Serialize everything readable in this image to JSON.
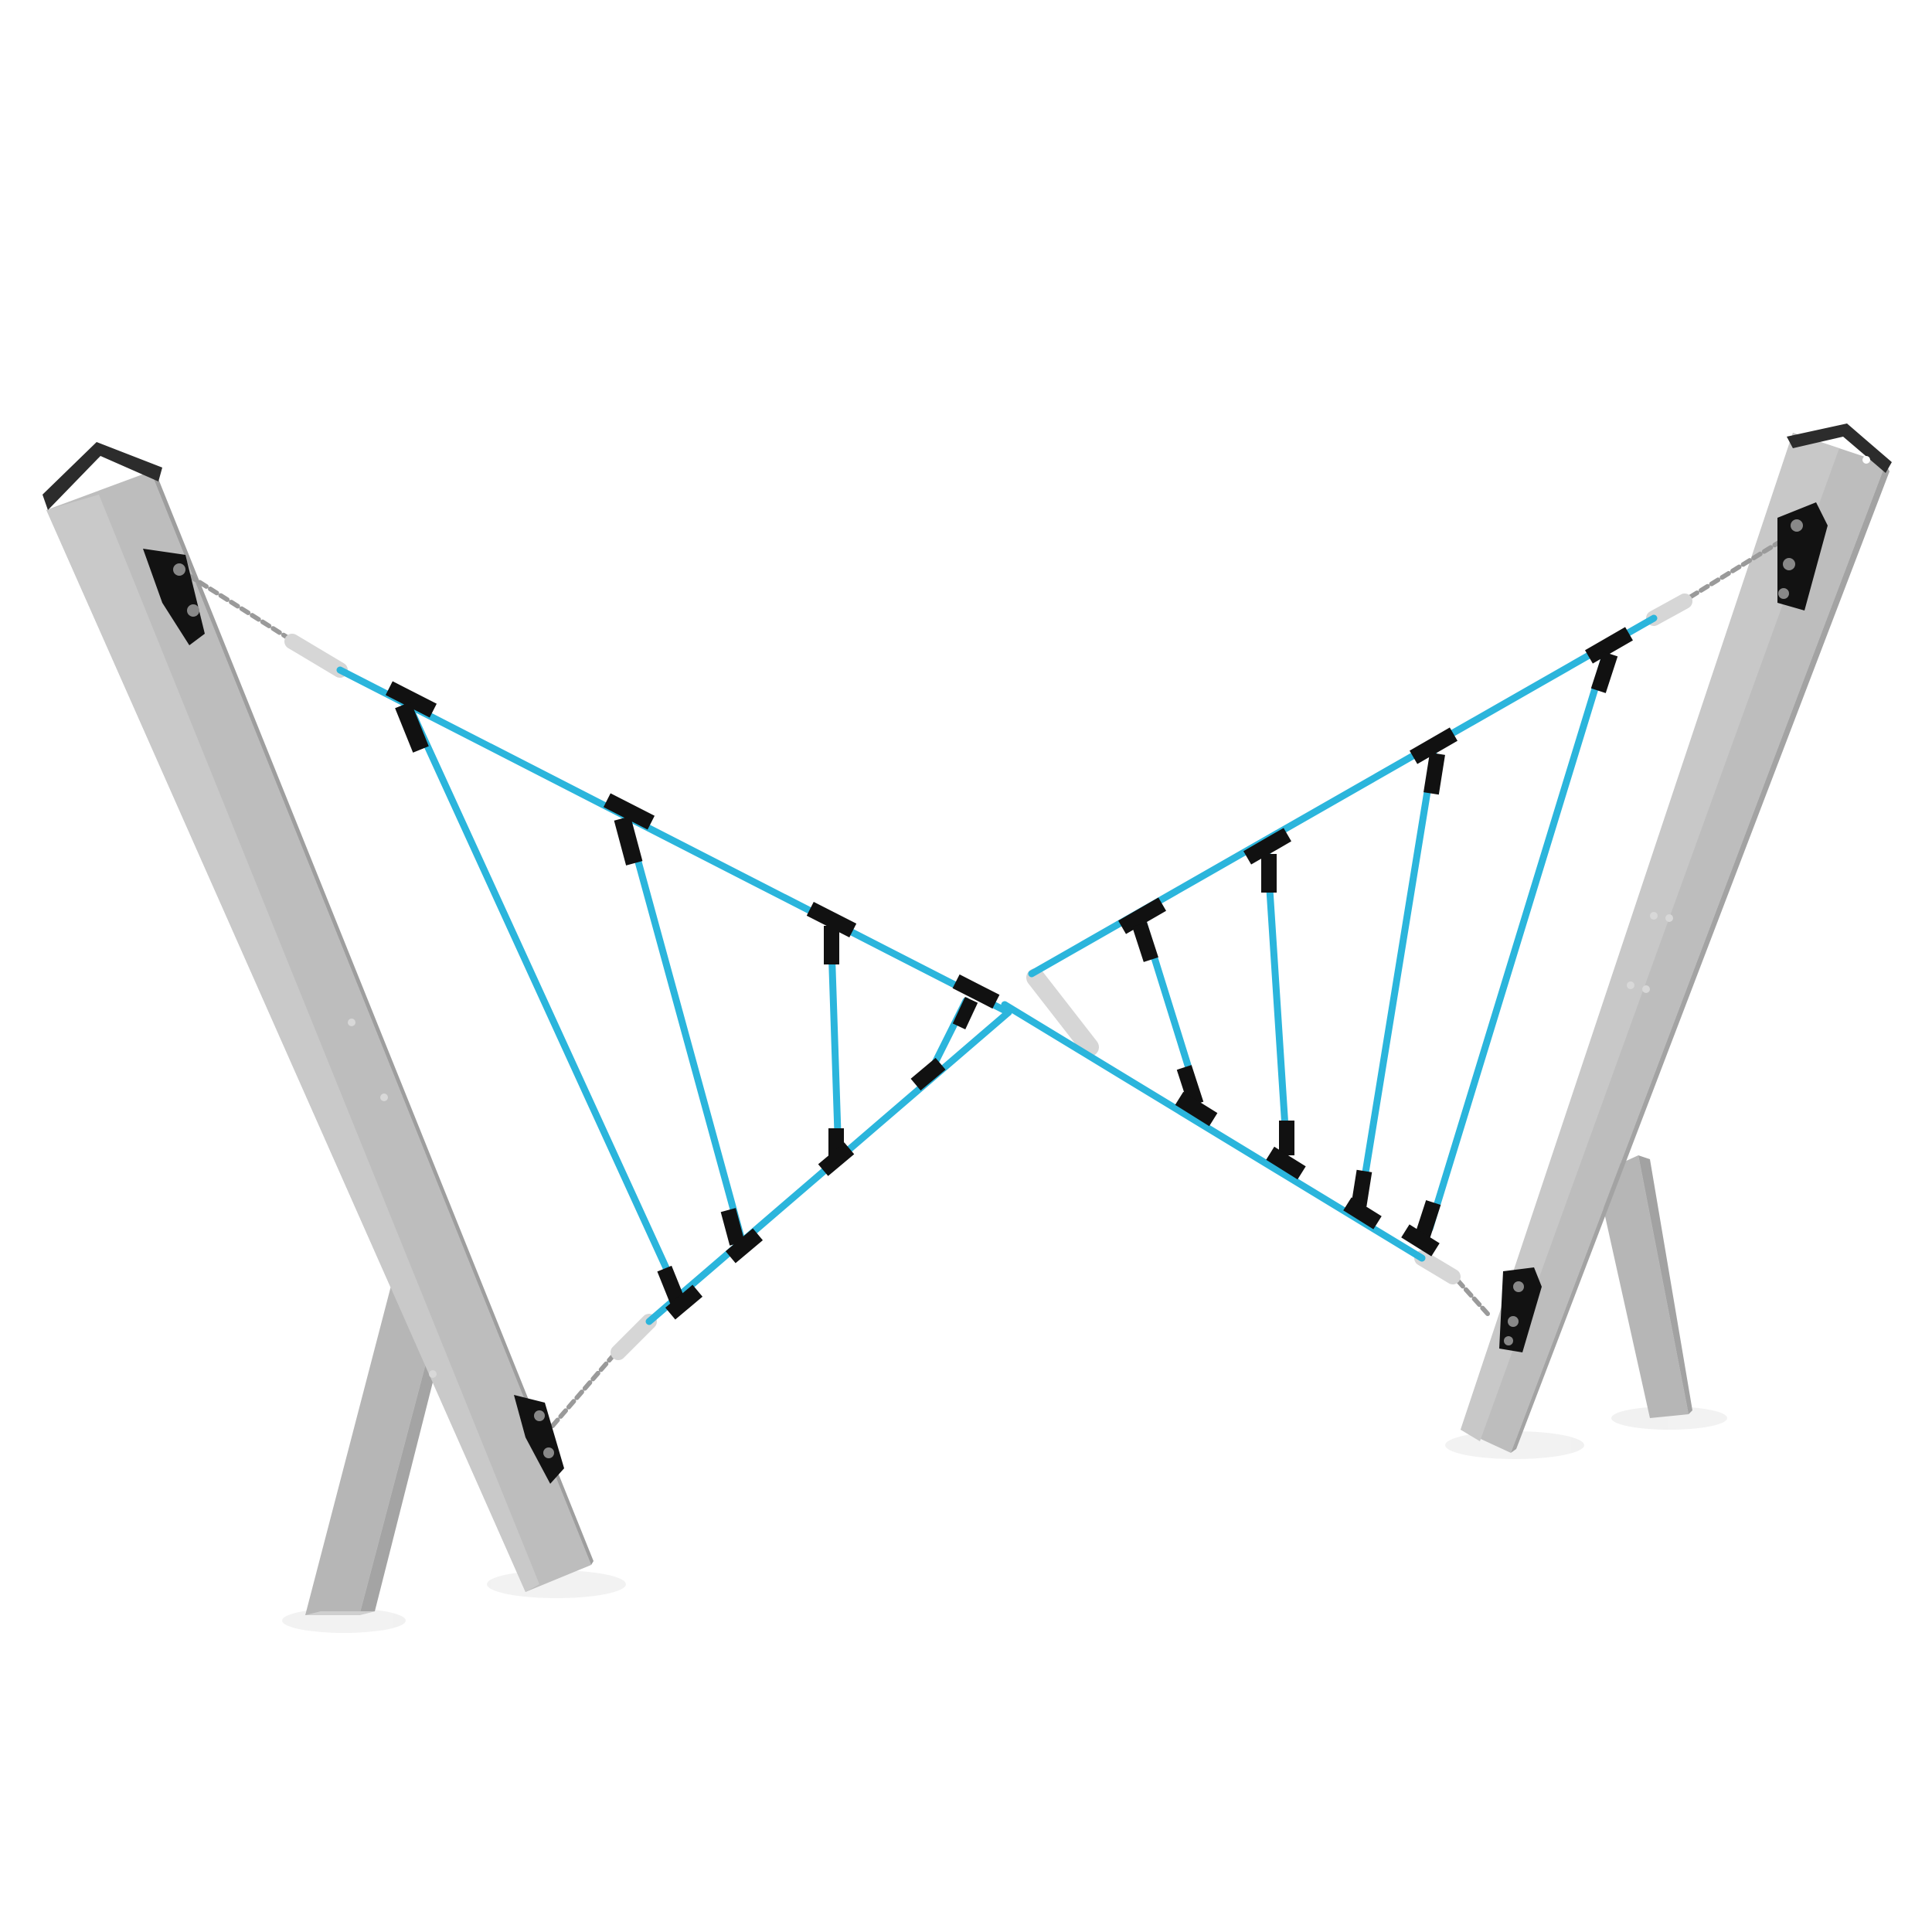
{
  "scene": {
    "subject": "cable-rope-traverse-playground-equipment",
    "colors": {
      "background": "#ffffff",
      "post": "#b4b4b4",
      "post_light": "#c7c7c7",
      "post_dark": "#9a9a9a",
      "post_cap": "#2b2b2b",
      "rope": "#2bb5dc",
      "connector": "#111111",
      "bracket": "#121212",
      "chain": "#9a9a9a",
      "sleeve": "#d9d9d9",
      "shadow": "#e9e9e9"
    },
    "icons": [
      "post-icon",
      "rope-icon",
      "bracket-icon",
      "chain-icon",
      "connector-icon"
    ]
  }
}
